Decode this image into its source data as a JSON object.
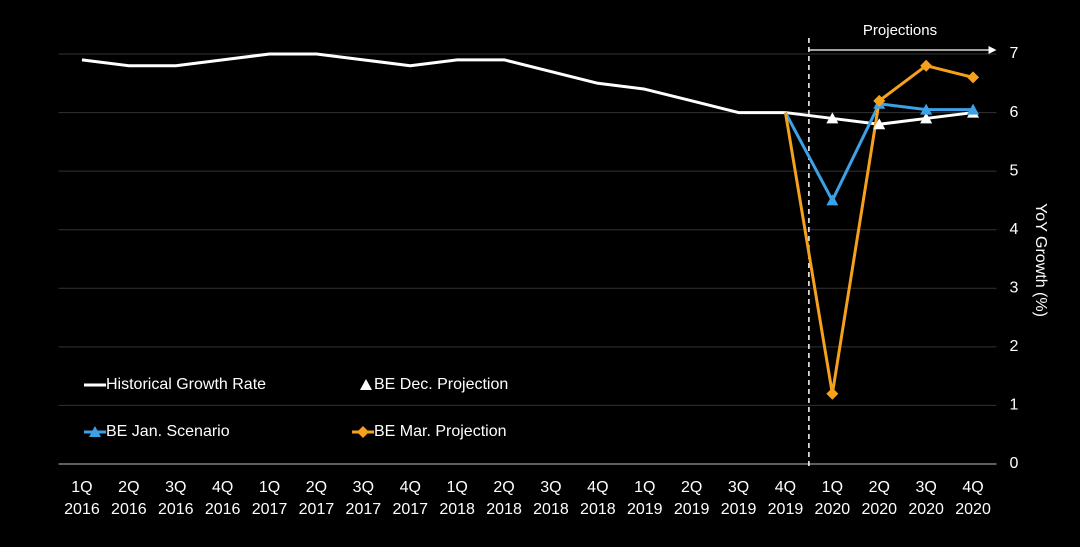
{
  "chart_data": {
    "type": "line",
    "categories": [
      "1Q 2016",
      "2Q 2016",
      "3Q 2016",
      "4Q 2016",
      "1Q 2017",
      "2Q 2017",
      "3Q 2017",
      "4Q 2017",
      "1Q 2018",
      "2Q 2018",
      "3Q 2018",
      "4Q 2018",
      "1Q 2019",
      "2Q 2019",
      "3Q 2019",
      "4Q 2019",
      "1Q 2020",
      "2Q 2020",
      "3Q 2020",
      "4Q 2020"
    ],
    "series": [
      {
        "name": "Historical Growth Rate",
        "color": "#ffffff",
        "marker": "none",
        "values": [
          6.9,
          6.8,
          6.8,
          6.9,
          7.0,
          7.0,
          6.9,
          6.8,
          6.9,
          6.9,
          6.7,
          6.5,
          6.4,
          6.2,
          6.0,
          6.0,
          null,
          null,
          null,
          null
        ]
      },
      {
        "name": "BE Dec. Projection",
        "color": "#ffffff",
        "marker": "triangle",
        "values": [
          null,
          null,
          null,
          null,
          null,
          null,
          null,
          null,
          null,
          null,
          null,
          null,
          null,
          null,
          null,
          6.0,
          5.9,
          5.8,
          5.9,
          6.0
        ]
      },
      {
        "name": "BE Jan. Scenario",
        "color": "#3ea1e6",
        "marker": "triangle",
        "values": [
          null,
          null,
          null,
          null,
          null,
          null,
          null,
          null,
          null,
          null,
          null,
          null,
          null,
          null,
          null,
          6.0,
          4.5,
          6.15,
          6.05,
          6.05
        ]
      },
      {
        "name": "BE Mar. Projection",
        "color": "#f5a11c",
        "marker": "diamond",
        "values": [
          null,
          null,
          null,
          null,
          null,
          null,
          null,
          null,
          null,
          null,
          null,
          null,
          null,
          null,
          null,
          6.0,
          1.2,
          6.2,
          6.8,
          6.6
        ]
      }
    ],
    "ylabel": "YoY Growth (%)",
    "annotation": "Projections",
    "ylim": [
      0,
      7
    ],
    "yticks": [
      0,
      1,
      2,
      3,
      4,
      5,
      6,
      7
    ],
    "grid": true,
    "legend": "lower-left"
  }
}
